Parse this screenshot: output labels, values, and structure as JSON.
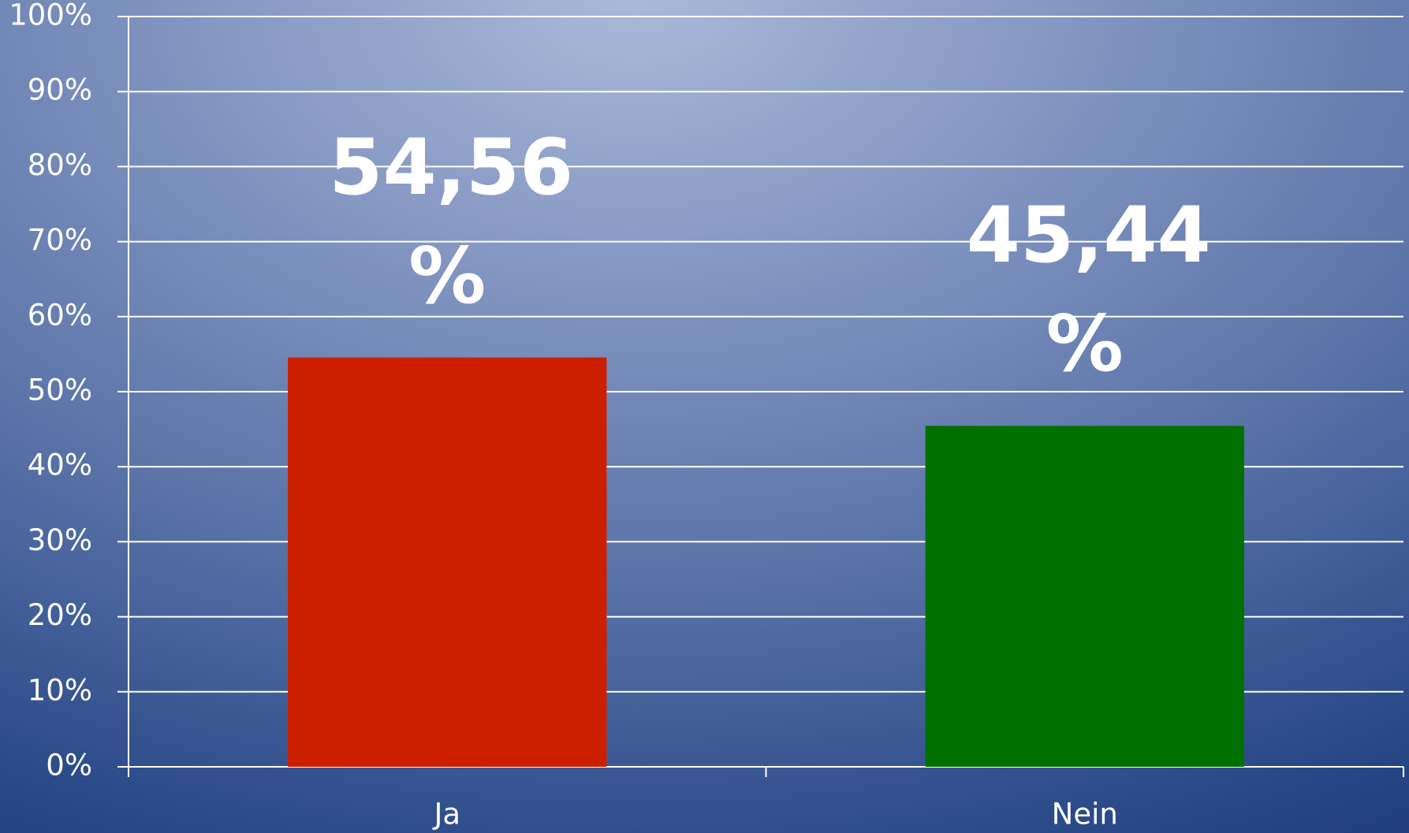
{
  "chart_data": {
    "type": "bar",
    "categories": [
      "Ja",
      "Nein"
    ],
    "values": [
      54.56,
      45.44
    ],
    "value_labels": [
      "54,56 %",
      "45,44 %"
    ],
    "colors": [
      "#cc1f00",
      "#007000"
    ],
    "ylim": [
      0,
      100
    ],
    "yticks": [
      {
        "value": 0,
        "label": "0%"
      },
      {
        "value": 10,
        "label": "10%"
      },
      {
        "value": 20,
        "label": "20%"
      },
      {
        "value": 30,
        "label": "30%"
      },
      {
        "value": 40,
        "label": "40%"
      },
      {
        "value": 50,
        "label": "50%"
      },
      {
        "value": 60,
        "label": "60%"
      },
      {
        "value": 70,
        "label": "70%"
      },
      {
        "value": 80,
        "label": "80%"
      },
      {
        "value": 90,
        "label": "90%"
      },
      {
        "value": 100,
        "label": "100%"
      }
    ],
    "grid": true
  }
}
